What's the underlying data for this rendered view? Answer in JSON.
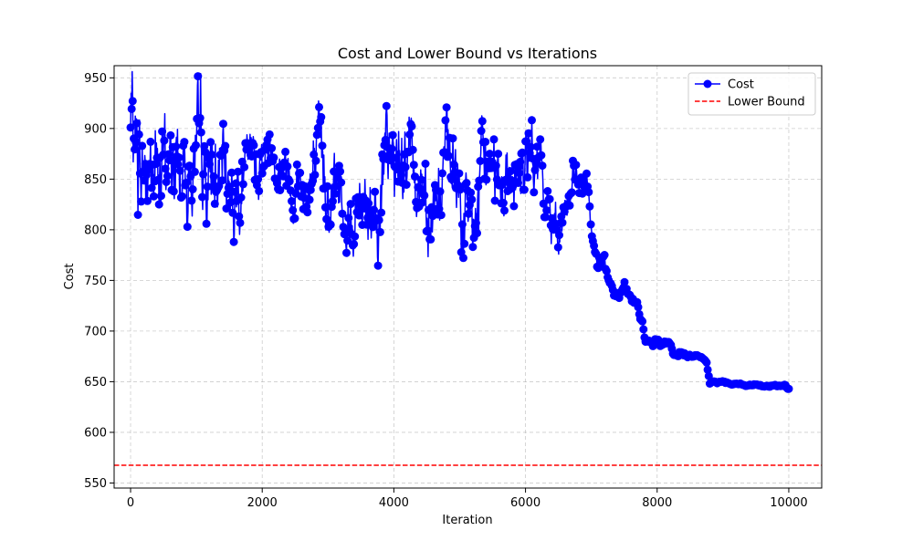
{
  "chart_data": {
    "type": "line",
    "title": "Cost and Lower Bound vs Iterations",
    "xlabel": "Iteration",
    "ylabel": "Cost",
    "xlim": [
      -250,
      10500
    ],
    "ylim": [
      545,
      962
    ],
    "xticks": [
      0,
      2000,
      4000,
      6000,
      8000,
      10000
    ],
    "yticks": [
      550,
      600,
      650,
      700,
      750,
      800,
      850,
      900,
      950
    ],
    "grid": true,
    "legend_position": "top-right",
    "colors": {
      "cost": "#0000ff",
      "lower_bound": "#ff0000",
      "grid": "#b0b0b0"
    },
    "series": [
      {
        "name": "Cost",
        "style": "line-with-circle-markers",
        "n_points": 10000,
        "anchors": [
          [
            0,
            905
          ],
          [
            100,
            880
          ],
          [
            200,
            860
          ],
          [
            400,
            855
          ],
          [
            700,
            860
          ],
          [
            900,
            868
          ],
          [
            1100,
            845
          ],
          [
            1300,
            845
          ],
          [
            1600,
            848
          ],
          [
            1900,
            860
          ],
          [
            2100,
            885
          ],
          [
            2300,
            872
          ],
          [
            2500,
            855
          ],
          [
            2700,
            845
          ],
          [
            2900,
            848
          ],
          [
            3100,
            848
          ],
          [
            3300,
            830
          ],
          [
            3450,
            810
          ],
          [
            3600,
            835
          ],
          [
            3800,
            840
          ],
          [
            4000,
            855
          ],
          [
            4200,
            880
          ],
          [
            4400,
            855
          ],
          [
            4600,
            840
          ],
          [
            4800,
            850
          ],
          [
            5000,
            840
          ],
          [
            5100,
            800
          ],
          [
            5300,
            820
          ],
          [
            5400,
            860
          ],
          [
            5600,
            868
          ],
          [
            5800,
            858
          ],
          [
            6000,
            860
          ],
          [
            6200,
            862
          ],
          [
            6300,
            815
          ],
          [
            6450,
            805
          ],
          [
            6600,
            825
          ],
          [
            6800,
            840
          ],
          [
            6950,
            835
          ],
          [
            7000,
            800
          ],
          [
            7100,
            768
          ],
          [
            7200,
            770
          ],
          [
            7250,
            745
          ],
          [
            7350,
            730
          ],
          [
            7500,
            742
          ],
          [
            7600,
            730
          ],
          [
            7700,
            722
          ],
          [
            7800,
            700
          ],
          [
            7900,
            688
          ],
          [
            8000,
            690
          ],
          [
            8150,
            690
          ],
          [
            8250,
            678
          ],
          [
            8400,
            676
          ],
          [
            8600,
            675
          ],
          [
            8750,
            670
          ],
          [
            8800,
            649
          ],
          [
            9000,
            650
          ],
          [
            9200,
            648
          ],
          [
            9400,
            647
          ],
          [
            9600,
            646
          ],
          [
            9800,
            646
          ],
          [
            9950,
            646
          ],
          [
            10000,
            643
          ]
        ],
        "noise_amplitude": [
          [
            0,
            55
          ],
          [
            1200,
            50
          ],
          [
            2000,
            25
          ],
          [
            3000,
            40
          ],
          [
            4000,
            45
          ],
          [
            5000,
            45
          ],
          [
            6000,
            35
          ],
          [
            6900,
            15
          ],
          [
            7000,
            8
          ],
          [
            7800,
            5
          ],
          [
            8500,
            2
          ],
          [
            8800,
            1
          ],
          [
            10000,
            1
          ]
        ]
      },
      {
        "name": "Lower Bound",
        "style": "dashed",
        "value": 567.5
      }
    ]
  }
}
